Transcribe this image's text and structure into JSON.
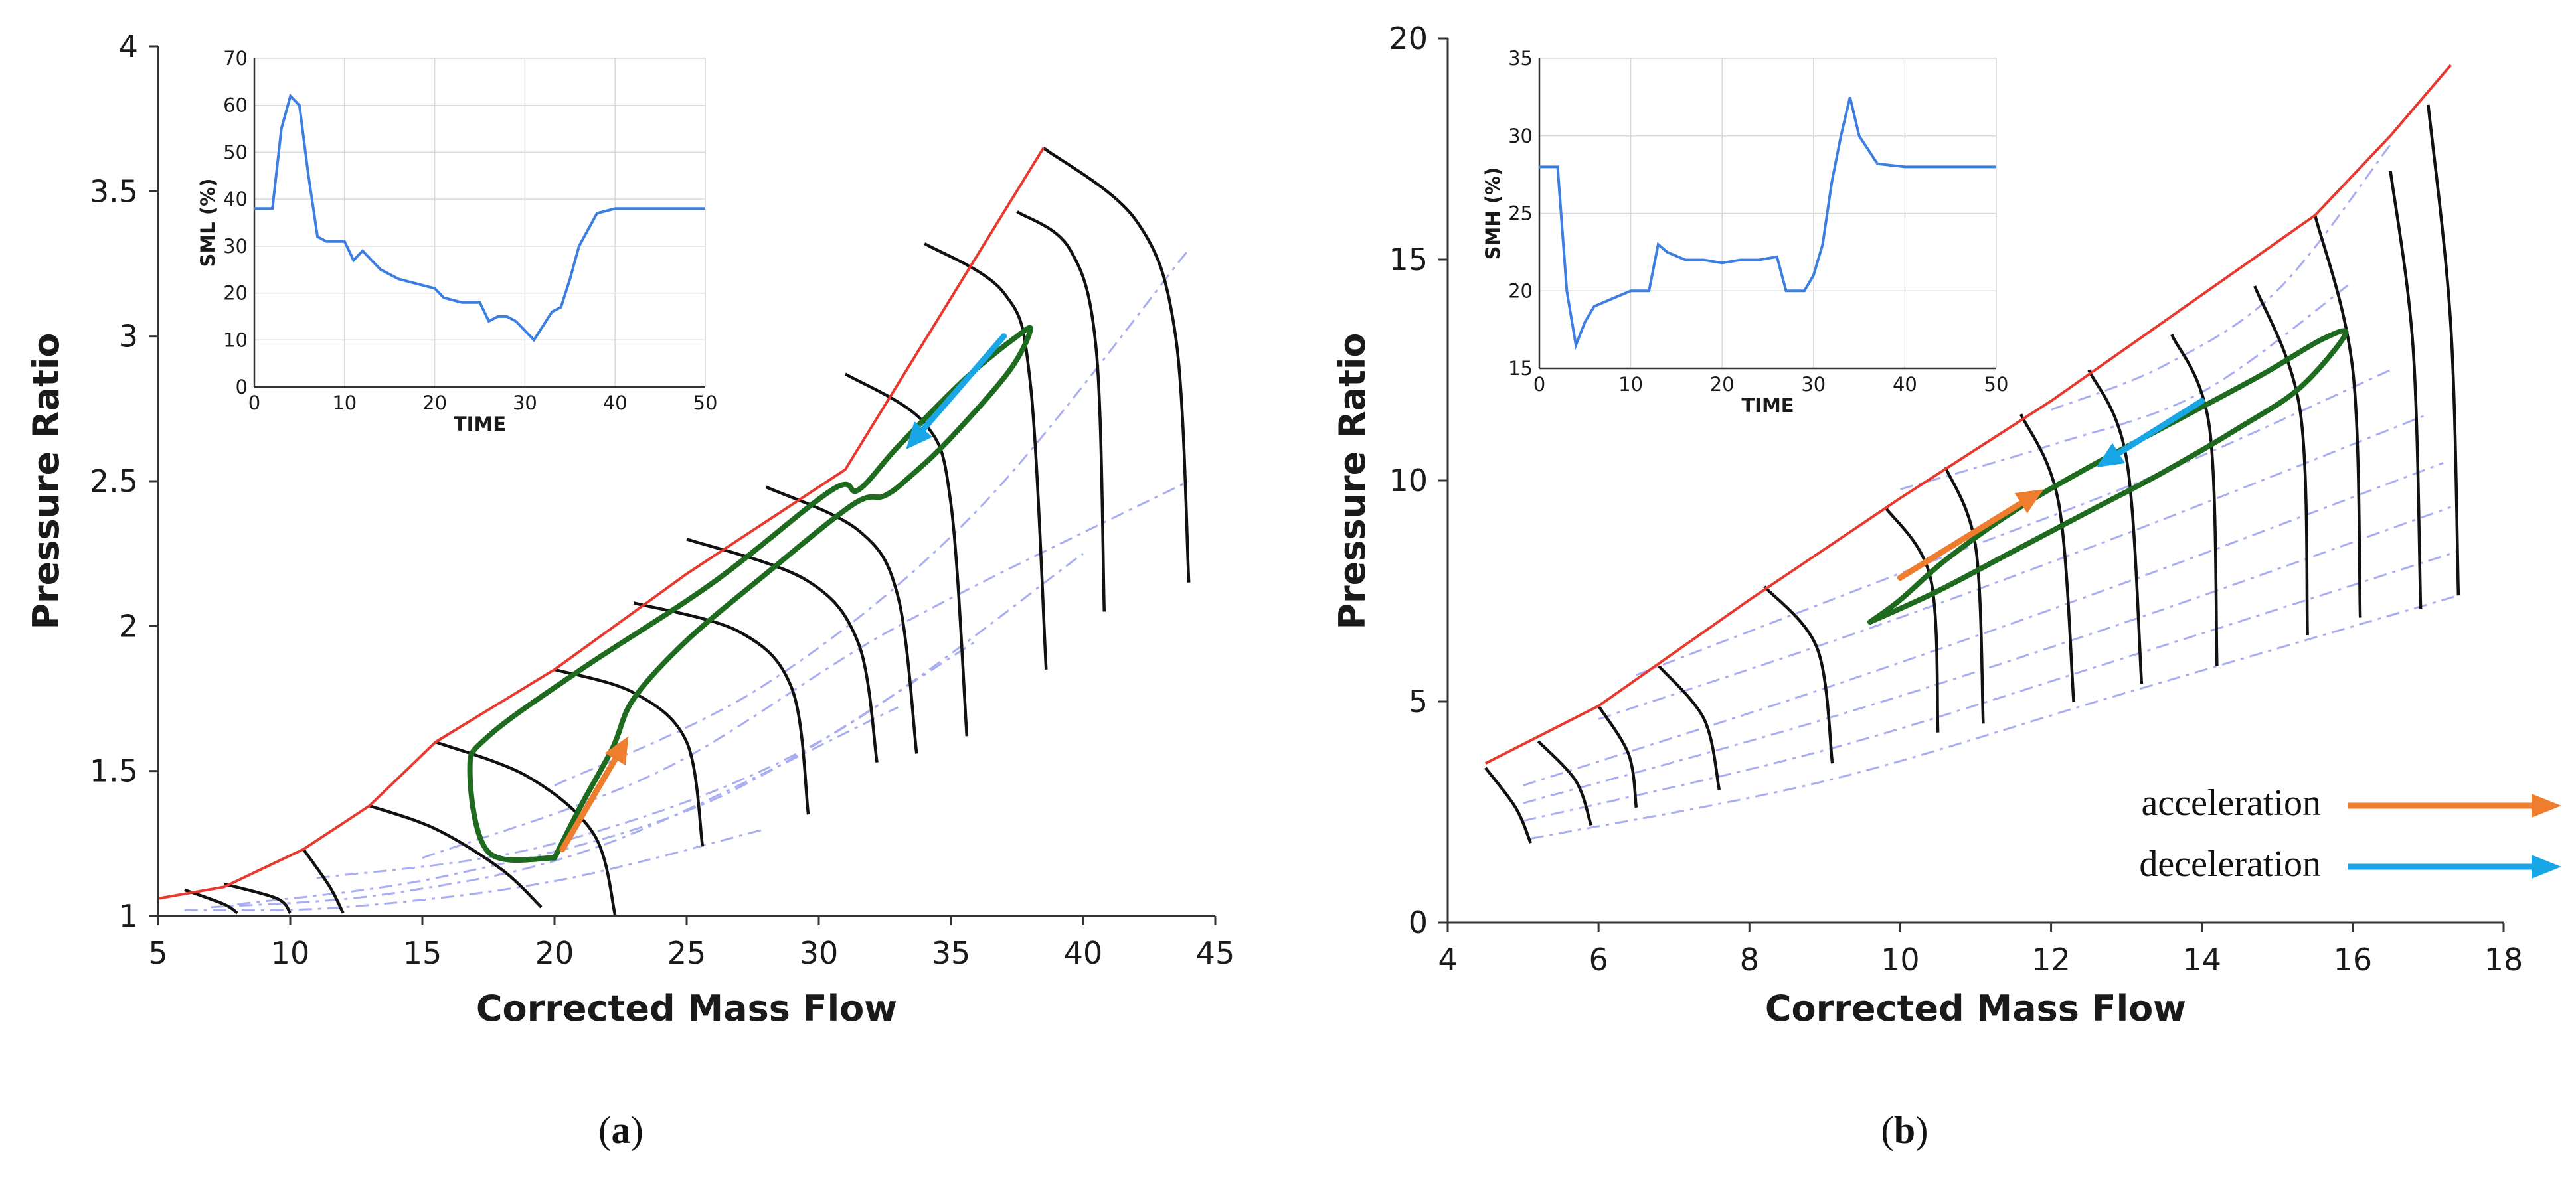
{
  "chart_data": [
    {
      "type": "line",
      "panel": "a",
      "caption": "a",
      "xlabel": "Corrected Mass Flow",
      "ylabel": "Pressure Ratio",
      "xlim": [
        5,
        45
      ],
      "ylim": [
        1,
        4
      ],
      "xticks": [
        "5",
        "10",
        "15",
        "20",
        "25",
        "30",
        "35",
        "40",
        "45"
      ],
      "yticks": [
        "1",
        "1.5",
        "2",
        "2.5",
        "3",
        "3.5",
        "4"
      ],
      "series": [
        {
          "name": "surge line",
          "color": "#e8392f",
          "x": [
            5.0,
            7.5,
            10.5,
            13.0,
            15.5,
            20.0,
            25.0,
            31.0,
            38.5
          ],
          "y": [
            1.06,
            1.1,
            1.23,
            1.38,
            1.6,
            1.85,
            2.18,
            2.54,
            3.65
          ]
        },
        {
          "name": "speed lines",
          "color": "#111111",
          "lines": [
            {
              "x": [
                6.0,
                7.5,
                8.0
              ],
              "y": [
                1.09,
                1.04,
                1.01
              ]
            },
            {
              "x": [
                7.5,
                9.5,
                10.0
              ],
              "y": [
                1.11,
                1.06,
                1.01
              ]
            },
            {
              "x": [
                10.5,
                11.5,
                12.0
              ],
              "y": [
                1.23,
                1.1,
                1.01
              ]
            },
            {
              "x": [
                13.0,
                15.5,
                18.0,
                19.5
              ],
              "y": [
                1.38,
                1.3,
                1.16,
                1.03
              ]
            },
            {
              "x": [
                15.5,
                19.0,
                21.5,
                22.3
              ],
              "y": [
                1.6,
                1.48,
                1.28,
                1.0
              ]
            },
            {
              "x": [
                20.0,
                23.0,
                25.0,
                25.6
              ],
              "y": [
                1.85,
                1.77,
                1.6,
                1.24
              ]
            },
            {
              "x": [
                23.0,
                27.0,
                29.0,
                29.6
              ],
              "y": [
                2.08,
                1.98,
                1.78,
                1.35
              ]
            },
            {
              "x": [
                25.0,
                29.5,
                31.5,
                32.2
              ],
              "y": [
                2.3,
                2.16,
                1.94,
                1.53
              ]
            },
            {
              "x": [
                28.0,
                31.5,
                33.0,
                33.7
              ],
              "y": [
                2.48,
                2.33,
                2.1,
                1.56
              ]
            },
            {
              "x": [
                31.0,
                34.0,
                35.0,
                35.6
              ],
              "y": [
                2.87,
                2.7,
                2.42,
                1.62
              ]
            },
            {
              "x": [
                34.0,
                37.0,
                38.0,
                38.6
              ],
              "y": [
                3.32,
                3.15,
                2.84,
                1.85
              ]
            },
            {
              "x": [
                37.5,
                39.5,
                40.5,
                40.8
              ],
              "y": [
                3.43,
                3.3,
                2.95,
                2.05
              ]
            },
            {
              "x": [
                38.5,
                42.0,
                43.5,
                44.0
              ],
              "y": [
                3.65,
                3.4,
                3.0,
                2.15
              ]
            }
          ]
        },
        {
          "name": "efficiency contours",
          "color": "#a9aef0",
          "lines": [
            {
              "x": [
                6.0,
                12.0,
                20.0,
                28.0
              ],
              "y": [
                1.02,
                1.03,
                1.12,
                1.3
              ]
            },
            {
              "x": [
                7.0,
                14.0,
                22.0,
                33.0
              ],
              "y": [
                1.03,
                1.08,
                1.25,
                1.72
              ]
            },
            {
              "x": [
                8.0,
                16.0,
                26.0,
                36.0
              ],
              "y": [
                1.04,
                1.14,
                1.4,
                1.95
              ]
            },
            {
              "x": [
                11.0,
                20.0,
                30.0,
                40.0
              ],
              "y": [
                1.13,
                1.25,
                1.6,
                2.25
              ]
            },
            {
              "x": [
                15.0,
                24.0,
                33.0,
                44.0
              ],
              "y": [
                1.2,
                1.5,
                2.0,
                2.5
              ]
            },
            {
              "x": [
                20.0,
                28.0,
                36.0,
                44.0
              ],
              "y": [
                1.45,
                1.8,
                2.4,
                3.3
              ]
            }
          ]
        },
        {
          "name": "transient trajectory",
          "color": "#1e6a1e",
          "x": [
            20.0,
            17.5,
            16.8,
            17.5,
            21.0,
            26.0,
            30.5,
            31.5,
            33.0,
            35.5,
            37.5,
            38.0,
            37.2,
            35.0,
            33.5,
            32.5,
            31.3,
            28.0,
            25.0,
            23.0,
            22.2,
            21.0,
            20.0
          ],
          "y": [
            1.2,
            1.22,
            1.5,
            1.62,
            1.85,
            2.15,
            2.47,
            2.47,
            2.62,
            2.85,
            3.0,
            3.02,
            2.88,
            2.65,
            2.52,
            2.45,
            2.42,
            2.18,
            1.95,
            1.75,
            1.58,
            1.38,
            1.2
          ]
        }
      ],
      "arrows": [
        {
          "name": "acceleration",
          "color": "#ef7d2e",
          "from": [
            20.3,
            1.23
          ],
          "to": [
            22.8,
            1.62
          ]
        },
        {
          "name": "deceleration",
          "color": "#19a6e6",
          "from": [
            37.0,
            3.0
          ],
          "to": [
            33.3,
            2.61
          ]
        }
      ],
      "inset": {
        "xlabel": "TIME",
        "ylabel": "SML (%)",
        "xlim": [
          0,
          50
        ],
        "ylim": [
          0,
          70
        ],
        "xticks": [
          "0",
          "10",
          "20",
          "30",
          "40",
          "50"
        ],
        "yticks": [
          "0",
          "10",
          "20",
          "30",
          "40",
          "50",
          "60",
          "70"
        ],
        "x": [
          0,
          2,
          3,
          4,
          5,
          6,
          7,
          8,
          10,
          11,
          12,
          13,
          14,
          16,
          18,
          20,
          21,
          23,
          25,
          26,
          27,
          28,
          29,
          30,
          31,
          32,
          33,
          34,
          35,
          36,
          38,
          40,
          45,
          50
        ],
        "y": [
          38,
          38,
          55,
          62,
          60,
          45,
          32,
          31,
          31,
          27,
          29,
          27,
          25,
          23,
          22,
          21,
          19,
          18,
          18,
          14,
          15,
          15,
          14,
          12,
          10,
          13,
          16,
          17,
          23,
          30,
          37,
          38,
          38,
          38
        ]
      }
    },
    {
      "type": "line",
      "panel": "b",
      "caption": "b",
      "xlabel": "Corrected Mass Flow",
      "ylabel": "Pressure Ratio",
      "xlim": [
        4,
        18
      ],
      "ylim": [
        0,
        20
      ],
      "xticks": [
        "4",
        "6",
        "8",
        "10",
        "12",
        "14",
        "16",
        "18"
      ],
      "yticks": [
        "0",
        "5",
        "10",
        "15",
        "20"
      ],
      "series": [
        {
          "name": "surge line",
          "color": "#e8392f",
          "x": [
            4.5,
            6.0,
            8.0,
            10.0,
            12.0,
            14.0,
            15.5,
            16.5,
            17.3
          ],
          "y": [
            3.6,
            4.9,
            7.3,
            9.6,
            11.8,
            14.2,
            16.0,
            17.8,
            19.4
          ]
        },
        {
          "name": "speed lines",
          "color": "#111111",
          "lines": [
            {
              "x": [
                4.5,
                4.9,
                5.1
              ],
              "y": [
                3.5,
                2.6,
                1.8
              ]
            },
            {
              "x": [
                5.2,
                5.7,
                5.9
              ],
              "y": [
                4.1,
                3.2,
                2.2
              ]
            },
            {
              "x": [
                6.0,
                6.4,
                6.5
              ],
              "y": [
                4.9,
                3.8,
                2.6
              ]
            },
            {
              "x": [
                6.8,
                7.4,
                7.6
              ],
              "y": [
                5.8,
                4.6,
                3.0
              ]
            },
            {
              "x": [
                8.2,
                8.9,
                9.1
              ],
              "y": [
                7.6,
                6.2,
                3.6
              ]
            },
            {
              "x": [
                9.8,
                10.4,
                10.5
              ],
              "y": [
                9.4,
                7.8,
                4.3
              ]
            },
            {
              "x": [
                10.6,
                11.0,
                11.1
              ],
              "y": [
                10.3,
                8.5,
                4.5
              ]
            },
            {
              "x": [
                11.6,
                12.1,
                12.3
              ],
              "y": [
                11.5,
                9.5,
                5.0
              ]
            },
            {
              "x": [
                12.5,
                13.0,
                13.2
              ],
              "y": [
                12.5,
                10.5,
                5.4
              ]
            },
            {
              "x": [
                13.6,
                14.1,
                14.2
              ],
              "y": [
                13.3,
                11.2,
                5.8
              ]
            },
            {
              "x": [
                14.7,
                15.3,
                15.4
              ],
              "y": [
                14.4,
                11.6,
                6.5
              ]
            },
            {
              "x": [
                15.5,
                16.0,
                16.1
              ],
              "y": [
                16.0,
                12.5,
                6.9
              ]
            },
            {
              "x": [
                16.5,
                16.8,
                16.9
              ],
              "y": [
                17.0,
                13.0,
                7.1
              ]
            },
            {
              "x": [
                17.0,
                17.3,
                17.4
              ],
              "y": [
                18.5,
                13.5,
                7.4
              ]
            }
          ]
        },
        {
          "name": "efficiency contours",
          "color": "#a9aef0",
          "lines": [
            {
              "x": [
                5.1,
                9.0,
                13.0,
                17.4
              ],
              "y": [
                1.9,
                3.2,
                5.2,
                7.4
              ]
            },
            {
              "x": [
                5.0,
                9.0,
                13.0,
                17.4
              ],
              "y": [
                2.3,
                3.9,
                6.0,
                8.4
              ]
            },
            {
              "x": [
                5.0,
                9.0,
                13.0,
                17.3
              ],
              "y": [
                2.7,
                4.6,
                6.8,
                9.4
              ]
            },
            {
              "x": [
                5.0,
                9.0,
                13.0,
                17.2
              ],
              "y": [
                3.1,
                5.3,
                7.7,
                10.4
              ]
            },
            {
              "x": [
                6.0,
                9.5,
                13.0,
                17.0
              ],
              "y": [
                4.6,
                6.6,
                8.8,
                11.5
              ]
            },
            {
              "x": [
                6.5,
                10.0,
                13.5,
                16.5
              ],
              "y": [
                5.6,
                7.9,
                10.2,
                12.5
              ]
            },
            {
              "x": [
                10.0,
                12.0,
                14.0,
                16.0
              ],
              "y": [
                9.8,
                10.8,
                12.0,
                14.5
              ]
            },
            {
              "x": [
                12.0,
                13.5,
                15.0,
                16.5
              ],
              "y": [
                11.6,
                12.6,
                14.3,
                17.6
              ]
            }
          ]
        },
        {
          "name": "transient trajectory",
          "color": "#1e6a1e",
          "x": [
            9.6,
            10.5,
            11.5,
            12.5,
            13.5,
            14.5,
            15.3,
            15.9,
            15.6,
            14.8,
            13.6,
            12.5,
            11.5,
            10.6,
            10.0,
            9.6
          ],
          "y": [
            6.8,
            7.5,
            8.4,
            9.3,
            10.2,
            11.2,
            12.1,
            13.3,
            13.2,
            12.4,
            11.3,
            10.3,
            9.3,
            8.2,
            7.3,
            6.8
          ]
        }
      ],
      "arrows": [
        {
          "name": "acceleration",
          "color": "#ef7d2e",
          "from": [
            10.0,
            7.8
          ],
          "to": [
            11.9,
            9.8
          ]
        },
        {
          "name": "deceleration",
          "color": "#19a6e6",
          "from": [
            14.0,
            11.8
          ],
          "to": [
            12.6,
            10.3
          ]
        }
      ],
      "inset": {
        "xlabel": "TIME",
        "ylabel": "SMH (%)",
        "xlim": [
          0,
          50
        ],
        "ylim": [
          15,
          35
        ],
        "xticks": [
          "0",
          "10",
          "20",
          "30",
          "40",
          "50"
        ],
        "yticks": [
          "15",
          "20",
          "25",
          "30",
          "35"
        ],
        "x": [
          0,
          2,
          3,
          4,
          5,
          6,
          8,
          10,
          12,
          13,
          14,
          16,
          18,
          20,
          22,
          24,
          26,
          27,
          28,
          29,
          30,
          31,
          32,
          33,
          34,
          35,
          37,
          40,
          45,
          50
        ],
        "y": [
          28,
          28,
          20,
          16.5,
          18,
          19,
          19.5,
          20,
          20,
          23,
          22.5,
          22,
          22,
          21.8,
          22,
          22,
          22.2,
          20,
          20,
          20,
          21,
          23,
          27,
          30,
          32.5,
          30,
          28.2,
          28,
          28,
          28
        ]
      }
    }
  ],
  "legend": {
    "acceleration_label": "acceleration",
    "deceleration_label": "deceleration",
    "acceleration_color": "#ef7d2e",
    "deceleration_color": "#19a6e6"
  },
  "captions": {
    "a": "a",
    "b": "b"
  }
}
